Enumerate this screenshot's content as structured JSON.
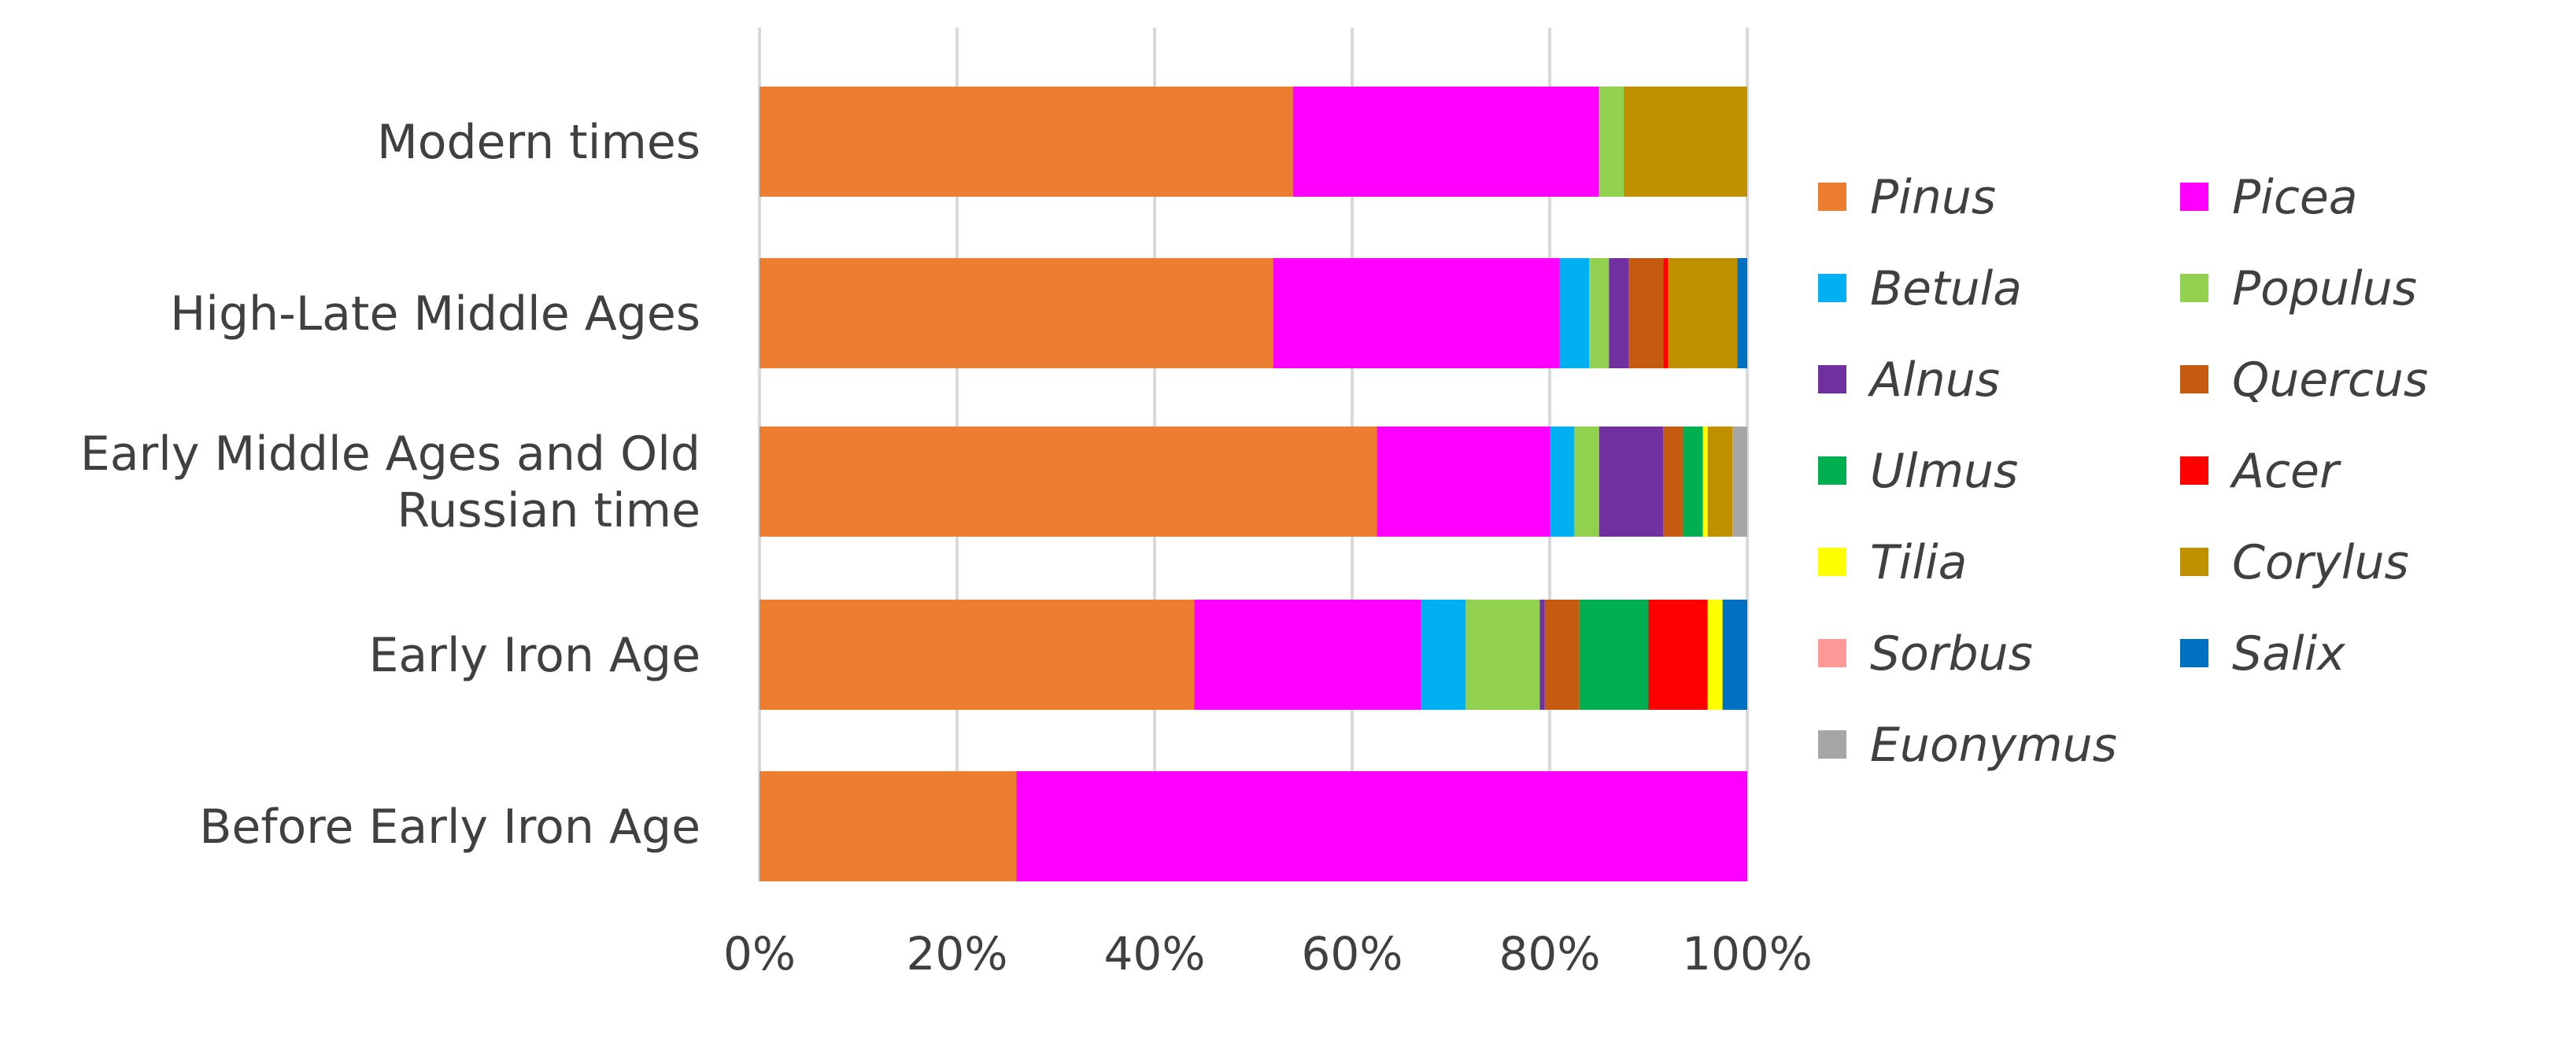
{
  "chart_data": {
    "type": "bar",
    "orientation": "horizontal",
    "stacked": true,
    "percent_stacked": true,
    "categories": [
      "Modern times",
      "High-Late Middle Ages",
      "Early Middle Ages and Old Russian time",
      "Early Iron Age",
      "Before Early Iron Age"
    ],
    "category_display_lines": [
      [
        "Modern times"
      ],
      [
        "High-Late Middle Ages"
      ],
      [
        "Early Middle Ages and Old",
        "Russian time"
      ],
      [
        "Early Iron Age"
      ],
      [
        "Before Early Iron Age"
      ]
    ],
    "x_ticks": [
      "0%",
      "20%",
      "40%",
      "60%",
      "80%",
      "100%"
    ],
    "xlim": [
      0,
      100
    ],
    "grid": "vertical",
    "legend_position": "right",
    "series": [
      {
        "name": "Pinus",
        "color": "#ED7D31",
        "values": [
          54,
          52,
          62.5,
          44,
          26
        ]
      },
      {
        "name": "Picea",
        "color": "#FF00FF",
        "values": [
          31,
          29,
          17.5,
          23,
          74
        ]
      },
      {
        "name": "Betula",
        "color": "#00B0F0",
        "values": [
          0,
          3,
          2.5,
          4.5,
          0
        ]
      },
      {
        "name": "Populus",
        "color": "#92D050",
        "values": [
          2.5,
          2,
          2.5,
          7.5,
          0
        ]
      },
      {
        "name": "Alnus",
        "color": "#7030A0",
        "values": [
          0,
          2,
          6.5,
          0.5,
          0
        ]
      },
      {
        "name": "Quercus",
        "color": "#C55A11",
        "values": [
          0,
          3.5,
          2,
          3.5,
          0
        ]
      },
      {
        "name": "Ulmus",
        "color": "#00B050",
        "values": [
          0,
          0,
          2,
          7,
          0
        ]
      },
      {
        "name": "Acer",
        "color": "#FF0000",
        "values": [
          0,
          0.5,
          0,
          6,
          0
        ]
      },
      {
        "name": "Tilia",
        "color": "#FFFF00",
        "values": [
          0,
          0,
          0.5,
          1.5,
          0
        ]
      },
      {
        "name": "Corylus",
        "color": "#BF9000",
        "values": [
          12.5,
          7,
          2.5,
          0,
          0
        ]
      },
      {
        "name": "Sorbus",
        "color": "#FF9999",
        "values": [
          0,
          0,
          0,
          0,
          0
        ]
      },
      {
        "name": "Salix",
        "color": "#0070C0",
        "values": [
          0,
          1,
          0,
          2.5,
          0
        ]
      },
      {
        "name": "Euonymus",
        "color": "#A6A6A6",
        "values": [
          0,
          0,
          1.5,
          0,
          0
        ]
      }
    ]
  }
}
